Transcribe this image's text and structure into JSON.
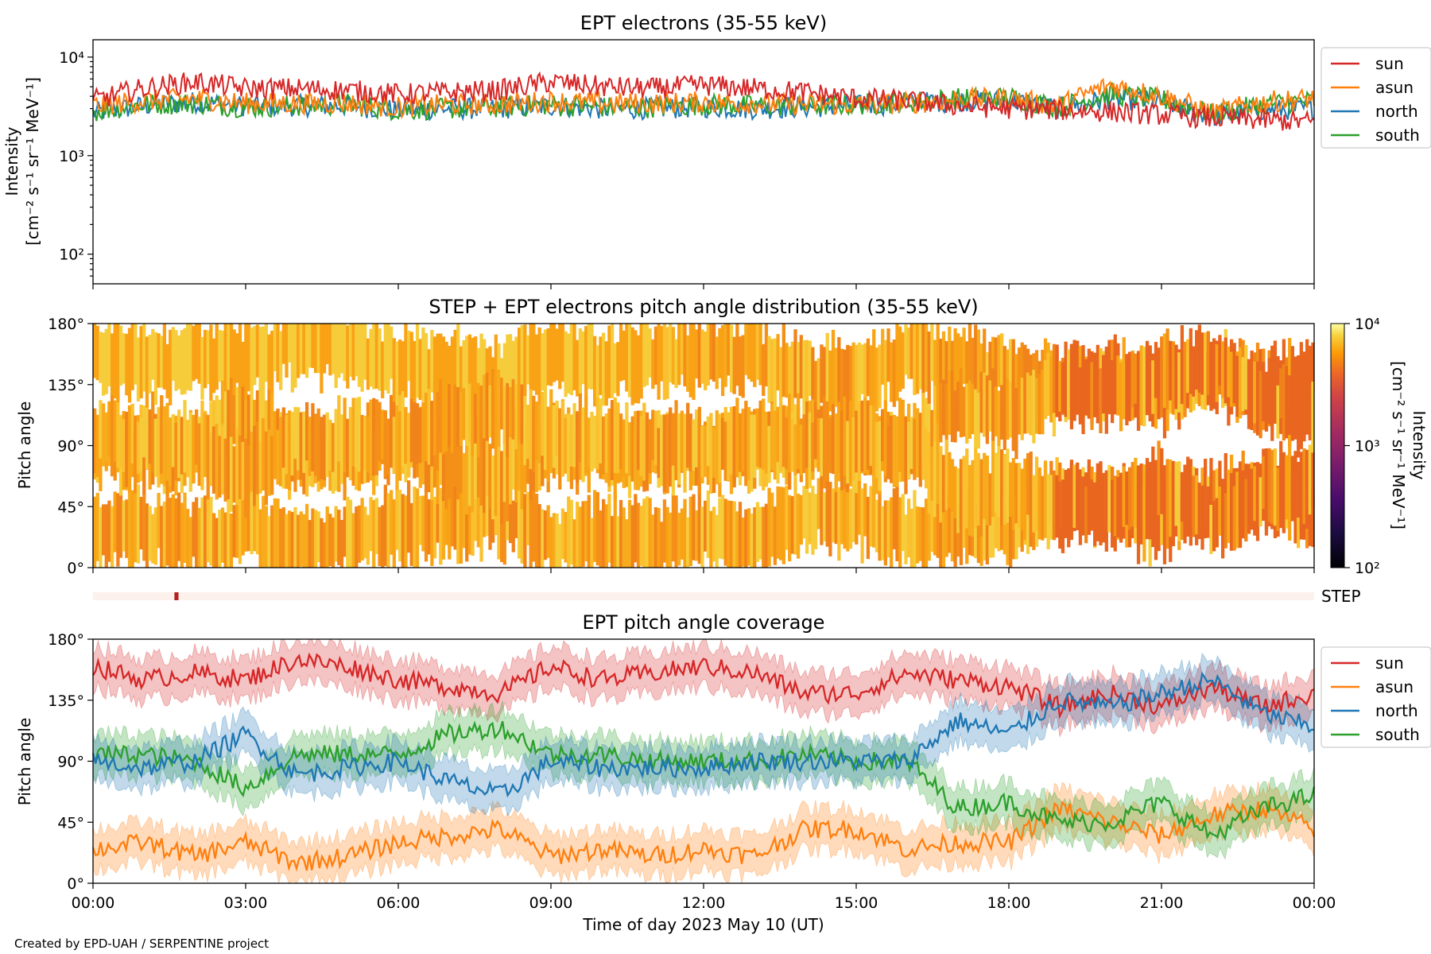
{
  "footer": "Created by EPD-UAH / SERPENTINE project",
  "chart_data": [
    {
      "type": "line",
      "title": "EPT electrons (35-55 keV)",
      "ylabel": "Intensity",
      "ylabel_units": "[cm⁻² s⁻¹ sr⁻¹ MeV⁻¹]",
      "yscale": "log",
      "ylim": [
        50,
        15000
      ],
      "yticks": [
        {
          "value": 100,
          "label": "10²"
        },
        {
          "value": 1000,
          "label": "10³"
        },
        {
          "value": 10000,
          "label": "10⁴"
        }
      ],
      "x_unit": "hours since 2023-05-10 00:00 UT",
      "xlim": [
        0,
        24
      ],
      "legend_position": "outside-right",
      "x": [
        0,
        1,
        2,
        3,
        4,
        5,
        6,
        7,
        8,
        9,
        10,
        11,
        12,
        13,
        14,
        15,
        16,
        17,
        18,
        19,
        20,
        21,
        22,
        23,
        24
      ],
      "series": [
        {
          "name": "sun",
          "color": "#d62728",
          "values": [
            3600,
            4800,
            5600,
            4800,
            4800,
            4600,
            4200,
            4400,
            4600,
            5600,
            5000,
            4800,
            5200,
            4800,
            4400,
            3800,
            3600,
            3200,
            3000,
            2900,
            2800,
            2600,
            2400,
            2300,
            2200
          ]
        },
        {
          "name": "asun",
          "color": "#ff7f0e",
          "values": [
            3200,
            3600,
            3800,
            3400,
            3400,
            3400,
            3100,
            3300,
            3300,
            3600,
            3400,
            3400,
            3500,
            3400,
            3300,
            3300,
            3400,
            3700,
            3800,
            3200,
            5200,
            4000,
            2700,
            3500,
            3800
          ]
        },
        {
          "name": "north",
          "color": "#1f77b4",
          "values": [
            2700,
            3200,
            3500,
            3200,
            3200,
            3200,
            2900,
            3000,
            3000,
            3200,
            3000,
            3000,
            3100,
            3000,
            3100,
            3200,
            3400,
            3600,
            3600,
            3000,
            3800,
            3500,
            2500,
            2900,
            3000
          ]
        },
        {
          "name": "south",
          "color": "#2ca02c",
          "values": [
            2800,
            3300,
            3400,
            3100,
            3200,
            3300,
            2900,
            3000,
            3100,
            3300,
            3100,
            3100,
            3300,
            3200,
            3200,
            3300,
            3500,
            3800,
            3900,
            3100,
            4200,
            3700,
            2600,
            3300,
            3600
          ]
        }
      ]
    },
    {
      "type": "heatmap",
      "title": "STEP + EPT electrons pitch angle distribution (35-55 keV)",
      "ylabel": "Pitch angle",
      "yticks": [
        "0°",
        "45°",
        "90°",
        "135°",
        "180°"
      ],
      "ylim": [
        0,
        180
      ],
      "x_unit": "hours since 2023-05-10 00:00 UT",
      "xlim": [
        0,
        24
      ],
      "colorbar": {
        "label": "Intensity",
        "units": "[cm⁻² s⁻¹ sr⁻¹ MeV⁻¹]",
        "scale": "log",
        "range": [
          100,
          10000
        ],
        "ticks": [
          "10²",
          "10³",
          "10⁴"
        ],
        "colormap": "inferno"
      }
    },
    {
      "type": "heatmap",
      "label": "STEP",
      "note": "narrow STEP coverage strip, mostly empty with a single short mark near 01:40",
      "marks": [
        {
          "start_hour": 1.6,
          "end_hour": 1.68,
          "color": "#b22222"
        }
      ],
      "background_color": "#fdf1ec"
    },
    {
      "type": "area",
      "title": "EPT pitch angle coverage",
      "ylabel": "Pitch angle",
      "xlabel": "Time of day 2023 May 10 (UT)",
      "yticks": [
        "0°",
        "45°",
        "90°",
        "135°",
        "180°"
      ],
      "ylim": [
        0,
        180
      ],
      "xticks": [
        "00:00",
        "03:00",
        "06:00",
        "09:00",
        "12:00",
        "15:00",
        "18:00",
        "21:00",
        "00:00"
      ],
      "x_unit": "hours since 2023-05-10 00:00 UT",
      "xlim": [
        0,
        24
      ],
      "legend_position": "outside-right",
      "band_halfwidth_deg": 15,
      "x": [
        0,
        1,
        2,
        3,
        4,
        5,
        6,
        7,
        8,
        9,
        10,
        11,
        12,
        13,
        14,
        15,
        16,
        17,
        18,
        19,
        20,
        21,
        22,
        23,
        24
      ],
      "series": [
        {
          "name": "sun",
          "color": "#d62728",
          "values": [
            160,
            150,
            155,
            150,
            165,
            160,
            150,
            145,
            140,
            160,
            150,
            155,
            160,
            155,
            140,
            140,
            155,
            150,
            145,
            130,
            140,
            130,
            145,
            130,
            140
          ]
        },
        {
          "name": "asun",
          "color": "#ff7f0e",
          "values": [
            25,
            30,
            20,
            30,
            15,
            20,
            30,
            35,
            40,
            20,
            25,
            20,
            25,
            20,
            40,
            40,
            25,
            30,
            30,
            55,
            45,
            35,
            50,
            55,
            40
          ]
        },
        {
          "name": "north",
          "color": "#1f77b4",
          "values": [
            90,
            85,
            90,
            110,
            80,
            85,
            90,
            75,
            65,
            90,
            85,
            85,
            85,
            90,
            90,
            90,
            90,
            120,
            110,
            135,
            130,
            140,
            150,
            125,
            115
          ]
        },
        {
          "name": "south",
          "color": "#2ca02c",
          "values": [
            95,
            95,
            90,
            70,
            95,
            95,
            95,
            110,
            115,
            95,
            95,
            90,
            90,
            90,
            95,
            90,
            90,
            55,
            60,
            45,
            45,
            60,
            35,
            55,
            65
          ]
        }
      ]
    }
  ]
}
